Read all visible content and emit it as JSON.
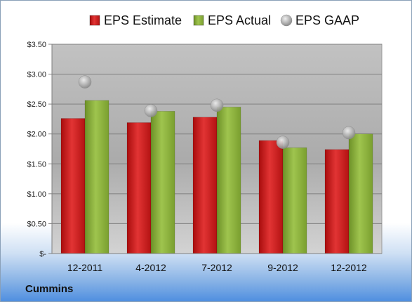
{
  "company": "Cummins",
  "chart_data": {
    "type": "bar",
    "categories": [
      "12-2011",
      "4-2012",
      "7-2012",
      "9-2012",
      "12-2012"
    ],
    "series": [
      {
        "name": "EPS Estimate",
        "kind": "bar",
        "color": "#cc1a1a",
        "values": [
          2.26,
          2.19,
          2.28,
          1.89,
          1.74
        ]
      },
      {
        "name": "EPS Actual",
        "kind": "bar",
        "color": "#8bb33c",
        "values": [
          2.56,
          2.38,
          2.45,
          1.77,
          2.0
        ]
      },
      {
        "name": "EPS GAAP",
        "kind": "marker",
        "color": "#a8a8a8",
        "values": [
          2.87,
          2.39,
          2.48,
          1.86,
          2.02
        ]
      }
    ],
    "ylim": [
      0,
      3.5
    ],
    "yticks": [
      0,
      0.5,
      1.0,
      1.5,
      2.0,
      2.5,
      3.0,
      3.5
    ],
    "ytick_labels": [
      "$-",
      "$0.50",
      "$1.00",
      "$1.50",
      "$2.00",
      "$2.50",
      "$3.00",
      "$3.50"
    ],
    "grid": true,
    "legend": "top",
    "plot_background": "#c0c0c0"
  }
}
